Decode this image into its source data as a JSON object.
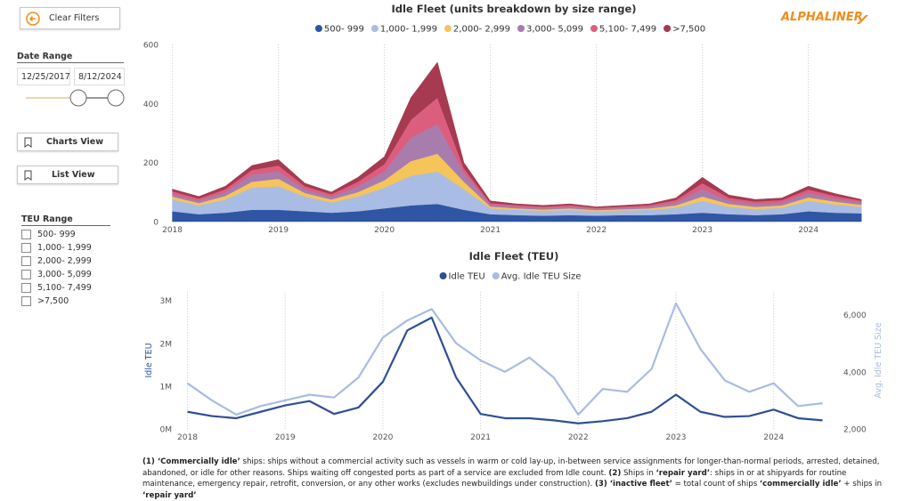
{
  "sidebar": {
    "clear_filters": "Clear Filters",
    "date_range_label": "Date Range",
    "start_date": "12/25/2017",
    "end_date": "8/12/2024",
    "charts_view": "Charts View",
    "list_view": "List View",
    "teu_range_label": "TEU Range",
    "teu_ranges": [
      "500- 999",
      "1,000- 1,999",
      "2,000- 2,999",
      "3,000- 5,099",
      "5,100- 7,499",
      ">7,500"
    ]
  },
  "brand": "ALPHALINER",
  "chart_data": [
    {
      "type": "area",
      "title": "Idle Fleet (units breakdown by size range)",
      "x": [
        2018.0,
        2018.25,
        2018.5,
        2018.75,
        2019.0,
        2019.25,
        2019.5,
        2019.75,
        2020.0,
        2020.25,
        2020.5,
        2020.75,
        2021.0,
        2021.25,
        2021.5,
        2021.75,
        2022.0,
        2022.25,
        2022.5,
        2022.75,
        2023.0,
        2023.25,
        2023.5,
        2023.75,
        2024.0,
        2024.25,
        2024.5
      ],
      "xlim": [
        2017.97,
        2024.65
      ],
      "xticks": [
        2018,
        2019,
        2020,
        2021,
        2022,
        2023,
        2024
      ],
      "ylim": [
        0,
        600
      ],
      "yticks": [
        0,
        200,
        400,
        600
      ],
      "grid": true,
      "stacked": true,
      "series": [
        {
          "name": "500- 999",
          "color": "#2f55a4",
          "values": [
            35,
            25,
            30,
            40,
            40,
            35,
            30,
            35,
            45,
            55,
            60,
            40,
            25,
            22,
            20,
            22,
            20,
            22,
            22,
            25,
            30,
            25,
            22,
            25,
            35,
            30,
            28
          ]
        },
        {
          "name": "1,000- 1,999",
          "color": "#a9bce3",
          "values": [
            40,
            30,
            45,
            75,
            80,
            50,
            35,
            50,
            70,
            100,
            110,
            70,
            20,
            18,
            16,
            18,
            15,
            16,
            18,
            22,
            40,
            25,
            20,
            22,
            35,
            28,
            22
          ]
        },
        {
          "name": "2,000- 2,999",
          "color": "#f5c55a",
          "values": [
            10,
            8,
            12,
            20,
            25,
            12,
            10,
            15,
            25,
            50,
            60,
            25,
            6,
            5,
            5,
            5,
            4,
            4,
            5,
            8,
            15,
            10,
            8,
            8,
            12,
            10,
            7
          ]
        },
        {
          "name": "3,000- 5,099",
          "color": "#a97cae",
          "values": [
            10,
            8,
            13,
            25,
            25,
            13,
            10,
            20,
            30,
            80,
            100,
            30,
            7,
            6,
            6,
            6,
            5,
            5,
            6,
            10,
            25,
            12,
            10,
            10,
            15,
            10,
            8
          ]
        },
        {
          "name": "5,100- 7,499",
          "color": "#dc5e7e",
          "values": [
            8,
            7,
            10,
            15,
            20,
            10,
            8,
            15,
            25,
            60,
            90,
            15,
            5,
            5,
            4,
            5,
            3,
            4,
            5,
            8,
            20,
            9,
            8,
            8,
            12,
            9,
            6
          ]
        },
        {
          "name": ">7,500",
          "color": "#a63a50",
          "values": [
            7,
            7,
            10,
            15,
            20,
            10,
            7,
            15,
            25,
            75,
            120,
            20,
            7,
            4,
            4,
            4,
            3,
            4,
            4,
            7,
            20,
            9,
            7,
            7,
            11,
            8,
            4
          ]
        }
      ]
    },
    {
      "type": "line",
      "title": "Idle Fleet (TEU)",
      "y_label": "Idle TEU",
      "y2_label": "Avg. Idle TEU Size",
      "x": [
        2018.0,
        2018.25,
        2018.5,
        2018.75,
        2019.0,
        2019.25,
        2019.5,
        2019.75,
        2020.0,
        2020.25,
        2020.5,
        2020.75,
        2021.0,
        2021.25,
        2021.5,
        2021.75,
        2022.0,
        2022.25,
        2022.5,
        2022.75,
        2023.0,
        2023.25,
        2023.5,
        2023.75,
        2024.0,
        2024.25,
        2024.5
      ],
      "xlim": [
        2017.95,
        2024.65
      ],
      "xticks": [
        2018,
        2019,
        2020,
        2021,
        2022,
        2023,
        2024
      ],
      "ylim": [
        0,
        3200000
      ],
      "yticks": [
        {
          "value": 0,
          "label": "0M"
        },
        {
          "value": 1000000,
          "label": "1M"
        },
        {
          "value": 2000000,
          "label": "2M"
        },
        {
          "value": 3000000,
          "label": "3M"
        }
      ],
      "y2lim": [
        2000,
        6800
      ],
      "y2ticks": [
        {
          "value": 2000,
          "label": "2,000"
        },
        {
          "value": 4000,
          "label": "4,000"
        },
        {
          "value": 6000,
          "label": "6,000"
        }
      ],
      "grid": true,
      "series": [
        {
          "name": "Idle TEU",
          "color": "#2f4f94",
          "values": [
            400000,
            300000,
            250000,
            400000,
            550000,
            650000,
            350000,
            500000,
            1100000,
            2300000,
            2600000,
            1200000,
            350000,
            250000,
            250000,
            200000,
            130000,
            180000,
            250000,
            400000,
            800000,
            400000,
            280000,
            300000,
            450000,
            250000,
            200000
          ]
        },
        {
          "name": "Avg. Idle TEU Size",
          "color": "#a9bce3",
          "axis": "y2",
          "values": [
            3600,
            3000,
            2500,
            2800,
            3000,
            3200,
            3100,
            3800,
            5200,
            5800,
            6200,
            5000,
            4400,
            4000,
            4500,
            3800,
            2500,
            3400,
            3300,
            4100,
            6400,
            4800,
            3700,
            3300,
            3600,
            2800,
            2900
          ]
        }
      ]
    }
  ],
  "footnote": [
    "(1) ‘Commercially idle’",
    " ships: ships without a commercial activity such as vessels in warm or cold lay-up, in-between service assignments for longer-than-normal periods, arrested, detained, abandoned, or idle for other reasons. Ships waiting off congested ports as part of a service are excluded from Idle count. ",
    "(2)",
    " Ships in ",
    "‘repair yard’",
    ": ships in or at shipyards for routine maintenance, emergency repair, retrofit, conversion, or any other works (excludes newbuildings under construction). ",
    "(3) ‘inactive fleet’",
    " = total count of ships ",
    "‘commercially idle’",
    " + ships in ",
    "‘repair yard’"
  ]
}
